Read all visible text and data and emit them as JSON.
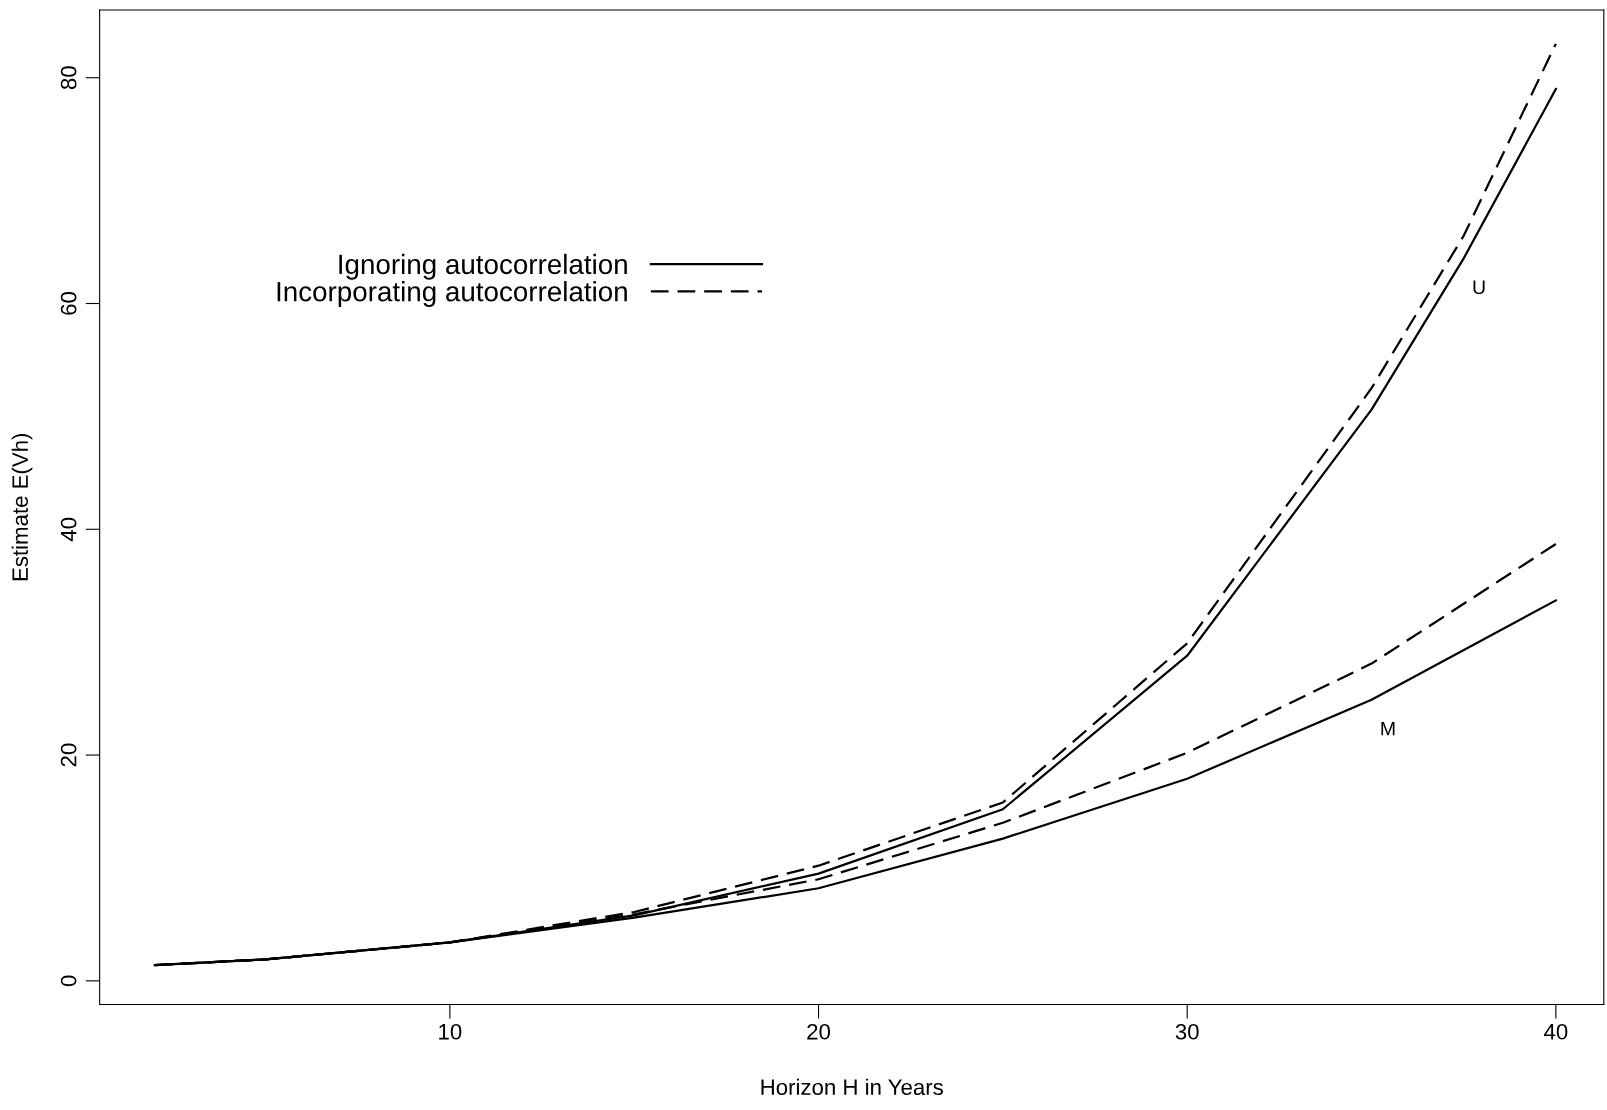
{
  "chart_data": {
    "type": "line",
    "xlabel": "Horizon H in Years",
    "ylabel": "Estimate E(Vh)",
    "xlim": [
      0.5,
      41.3
    ],
    "ylim": [
      -2.1,
      86
    ],
    "xticks": [
      10,
      20,
      30,
      40
    ],
    "yticks": [
      0,
      20,
      40,
      60,
      80
    ],
    "grid": false,
    "legend": "top left",
    "marker": "none",
    "series": [
      {
        "name": "Ignoring autocorrelation",
        "color": "#000000",
        "line_style": "solid",
        "x": [
          2,
          5,
          10,
          15,
          20,
          25,
          30,
          35,
          37.5,
          40
        ],
        "values": [
          1.4,
          1.9,
          3.4,
          5.8,
          9.5,
          15.2,
          28.8,
          50.6,
          64,
          79
        ]
      },
      {
        "name": "Incorporating autocorrelation",
        "color": "#000000",
        "line_style": "dashed",
        "x": [
          2,
          5,
          10,
          15,
          20,
          25,
          30,
          35,
          37.5,
          40
        ],
        "values": [
          1.4,
          1.9,
          3.4,
          6.1,
          10.2,
          15.8,
          29.9,
          52.5,
          66,
          83
        ]
      },
      {
        "color": "#000000",
        "line_style": "solid",
        "x": [
          2,
          5,
          10,
          15,
          20,
          25,
          30,
          35,
          40
        ],
        "values": [
          1.4,
          1.9,
          3.4,
          5.6,
          8.2,
          12.6,
          17.9,
          24.9,
          33.7
        ]
      },
      {
        "color": "#000000",
        "line_style": "dashed",
        "x": [
          2,
          5,
          10,
          15,
          20,
          25,
          30,
          35,
          40
        ],
        "values": [
          1.4,
          1.9,
          3.4,
          5.9,
          9.0,
          14.0,
          20.2,
          28.1,
          38.7
        ]
      }
    ],
    "annotations": [
      "U",
      "M"
    ]
  }
}
